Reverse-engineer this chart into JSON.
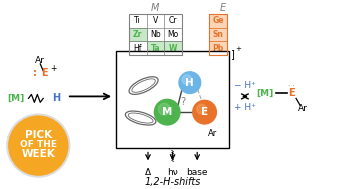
{
  "bg_color": "#ffffff",
  "orange": "#E8722A",
  "green": "#4DB34D",
  "blue": "#6AB4E8",
  "text_blue": "#4472C4",
  "gray": "#808080",
  "table_M": [
    [
      "Ti",
      "V",
      "Cr"
    ],
    [
      "Zr",
      "Nb",
      "Mo"
    ],
    [
      "Hf",
      "Ta",
      "W"
    ]
  ],
  "table_E": [
    "Ge",
    "Sn",
    "Pb"
  ],
  "M_green": [
    "Zr",
    "Ta",
    "W"
  ],
  "E_orange_bg": "#FAD5B8",
  "E_orange_border": "#E8722A",
  "M_green_bg": "#C8E6C8",
  "label_1_2_shifts": "1,2-H-shifts",
  "label_delta": "Δ",
  "label_hv": "hν",
  "label_base": "base",
  "label_minus_H": "− H⁺",
  "label_plus_H": "+ H⁺",
  "pick_color": "#F5A623",
  "pick_lines": [
    "PICK",
    "OF THE",
    "WEEK"
  ]
}
